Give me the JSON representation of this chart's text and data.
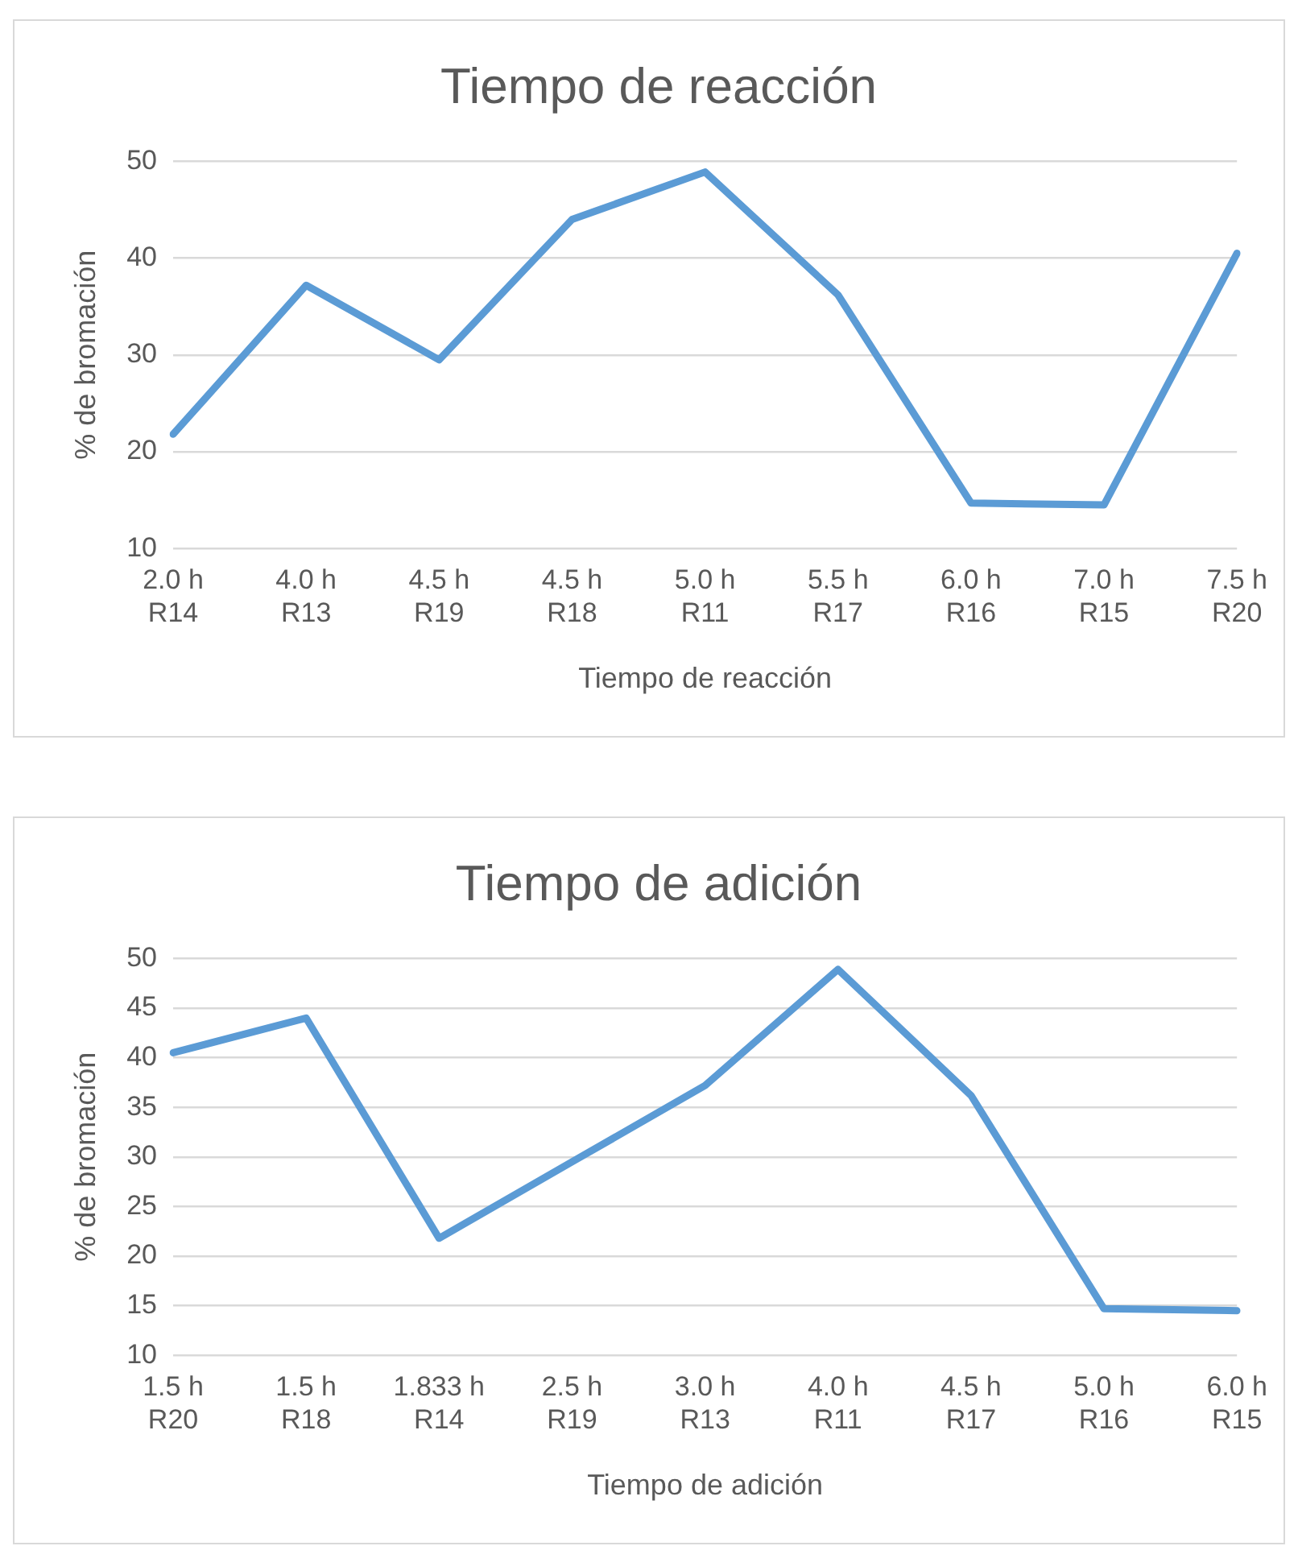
{
  "chart_data": [
    {
      "type": "line",
      "title": "Tiempo de reacción",
      "xlabel": "Tiempo de reacción",
      "ylabel": "% de bromación",
      "categories": [
        "2.0 h\nR14",
        "4.0 h\nR13",
        "4.5 h\nR19",
        "4.5 h\nR18",
        "5.0 h\nR11",
        "5.5 h\nR17",
        "6.0 h\nR16",
        "7.0 h\nR15",
        "7.5 h\nR20"
      ],
      "series": [
        {
          "color": "#5b9bd5",
          "values": [
            21.8,
            37.2,
            29.5,
            44,
            48.9,
            36.2,
            14.7,
            14.5,
            40.5
          ]
        }
      ],
      "ylim": [
        10,
        50
      ],
      "yticks": [
        10,
        20,
        30,
        40,
        50
      ],
      "grid": "y",
      "legend": false,
      "marker": "none",
      "line_style": "solid"
    },
    {
      "type": "line",
      "title": "Tiempo de adición",
      "xlabel": "Tiempo de adición",
      "ylabel": "% de bromación",
      "categories": [
        "1.5 h\nR20",
        "1.5 h\nR18",
        "1.833 h\nR14",
        "2.5 h\nR19",
        "3.0 h\nR13",
        "4.0 h\nR11",
        "4.5 h\nR17",
        "5.0 h\nR16",
        "6.0 h\nR15"
      ],
      "series": [
        {
          "color": "#5b9bd5",
          "values": [
            40.5,
            44,
            21.8,
            29.5,
            37.2,
            48.9,
            36.2,
            14.7,
            14.5
          ]
        }
      ],
      "ylim": [
        10,
        50
      ],
      "yticks": [
        10,
        15,
        20,
        25,
        30,
        35,
        40,
        45,
        50
      ],
      "grid": "y",
      "legend": false,
      "marker": "none",
      "line_style": "solid"
    }
  ]
}
